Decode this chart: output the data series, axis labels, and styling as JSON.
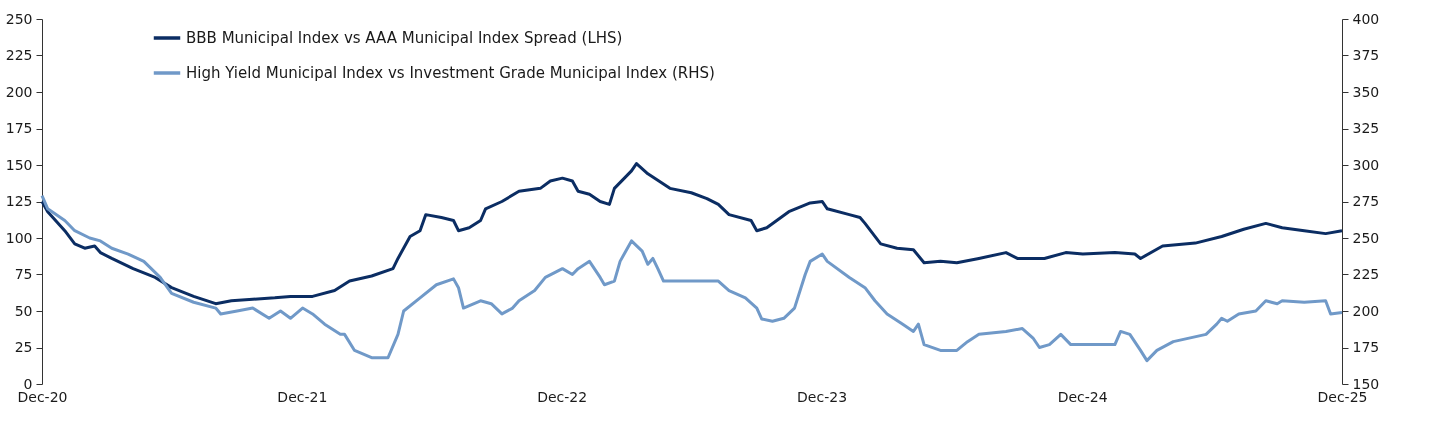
{
  "chart_data": {
    "type": "line",
    "xlim": [
      "2020-12-31",
      "2025-12-31"
    ],
    "xticks": [
      {
        "value": "2020-12-31",
        "label": "Dec-20"
      },
      {
        "value": "2021-12-31",
        "label": "Dec-21"
      },
      {
        "value": "2022-12-31",
        "label": "Dec-22"
      },
      {
        "value": "2023-12-31",
        "label": "Dec-23"
      },
      {
        "value": "2024-12-31",
        "label": "Dec-24"
      },
      {
        "value": "2025-12-31",
        "label": "Dec-25"
      }
    ],
    "ylim": [
      0,
      250
    ],
    "yticks": [
      0,
      25,
      50,
      75,
      100,
      125,
      150,
      175,
      200,
      225,
      250
    ],
    "y2lim": [
      150,
      400
    ],
    "y2ticks": [
      150,
      175,
      200,
      225,
      250,
      275,
      300,
      325,
      350,
      375,
      400
    ],
    "grid": false,
    "legend": "top left",
    "marker": "none",
    "line_style": "solid",
    "series": [
      {
        "name": "BBB Municipal Index vs AAA Municipal Index Spread (LHS)",
        "color": "#0b2d63",
        "axis": "y",
        "x": [
          "2020-12-31",
          "2021-01-08",
          "2021-02-01",
          "2021-02-15",
          "2021-03-01",
          "2021-03-15",
          "2021-03-23",
          "2021-04-08",
          "2021-05-08",
          "2021-06-08",
          "2021-07-01",
          "2021-08-01",
          "2021-09-01",
          "2021-09-23",
          "2021-10-23",
          "2021-11-23",
          "2021-12-15",
          "2022-01-15",
          "2022-02-15",
          "2022-03-08",
          "2022-04-08",
          "2022-05-08",
          "2022-05-15",
          "2022-06-01",
          "2022-06-15",
          "2022-06-23",
          "2022-07-15",
          "2022-08-01",
          "2022-08-08",
          "2022-08-23",
          "2022-09-08",
          "2022-09-15",
          "2022-10-08",
          "2022-11-01",
          "2022-12-01",
          "2022-12-15",
          "2023-01-01",
          "2023-01-15",
          "2023-01-23",
          "2023-02-08",
          "2023-02-23",
          "2023-03-08",
          "2023-03-15",
          "2023-04-08",
          "2023-04-15",
          "2023-05-01",
          "2023-06-01",
          "2023-07-01",
          "2023-07-23",
          "2023-08-08",
          "2023-08-23",
          "2023-09-23",
          "2023-10-01",
          "2023-10-15",
          "2023-11-15",
          "2023-12-15",
          "2024-01-01",
          "2024-01-08",
          "2024-02-08",
          "2024-02-23",
          "2024-03-01",
          "2024-03-23",
          "2024-04-15",
          "2024-05-08",
          "2024-05-23",
          "2024-06-15",
          "2024-07-08",
          "2024-08-08",
          "2024-09-15",
          "2024-10-01",
          "2024-11-08",
          "2024-12-08",
          "2025-01-01",
          "2025-02-15",
          "2025-03-15",
          "2025-03-23",
          "2025-04-23",
          "2025-06-08",
          "2025-07-15",
          "2025-08-15",
          "2025-09-15",
          "2025-10-08",
          "2025-11-08",
          "2025-12-08",
          "2025-12-31"
        ],
        "values": [
          125,
          118,
          105,
          96,
          93,
          94.5,
          90,
          86,
          79,
          73,
          66,
          60,
          55,
          57,
          58,
          59,
          60,
          60,
          64,
          70.5,
          74,
          79,
          86,
          101,
          105,
          116,
          114,
          112,
          105,
          107,
          112,
          120,
          125,
          132,
          134,
          139,
          141,
          139,
          132,
          130,
          125,
          123,
          134,
          146,
          151,
          144,
          134,
          131,
          127,
          123,
          116,
          112,
          105,
          107,
          118,
          124,
          125,
          120,
          116,
          114,
          110,
          96,
          93,
          92,
          83,
          84,
          83,
          86,
          90,
          86,
          86,
          90,
          89,
          90,
          89,
          86,
          94.5,
          96.5,
          101,
          106,
          110,
          107,
          105,
          103,
          105
        ]
      },
      {
        "name": "High Yield Municipal Index vs Investment Grade Municipal Index (RHS)",
        "color": "#7099c8",
        "axis": "y2",
        "x": [
          "2020-12-31",
          "2021-01-08",
          "2021-02-01",
          "2021-02-15",
          "2021-03-08",
          "2021-03-23",
          "2021-04-08",
          "2021-05-01",
          "2021-05-23",
          "2021-06-15",
          "2021-07-01",
          "2021-08-01",
          "2021-09-01",
          "2021-09-08",
          "2021-10-01",
          "2021-10-23",
          "2021-11-15",
          "2021-12-01",
          "2021-12-15",
          "2022-01-01",
          "2022-01-15",
          "2022-02-01",
          "2022-02-23",
          "2022-03-01",
          "2022-03-15",
          "2022-04-08",
          "2022-05-01",
          "2022-05-15",
          "2022-05-23",
          "2022-06-15",
          "2022-07-08",
          "2022-08-01",
          "2022-08-08",
          "2022-08-15",
          "2022-09-08",
          "2022-09-23",
          "2022-10-08",
          "2022-10-23",
          "2022-11-01",
          "2022-11-23",
          "2022-12-08",
          "2023-01-01",
          "2023-01-15",
          "2023-01-23",
          "2023-02-08",
          "2023-02-23",
          "2023-03-01",
          "2023-03-15",
          "2023-03-23",
          "2023-04-08",
          "2023-04-23",
          "2023-05-01",
          "2023-05-08",
          "2023-05-15",
          "2023-05-23",
          "2023-07-01",
          "2023-08-08",
          "2023-08-23",
          "2023-09-15",
          "2023-10-01",
          "2023-10-08",
          "2023-10-23",
          "2023-11-08",
          "2023-11-23",
          "2023-12-08",
          "2023-12-15",
          "2024-01-01",
          "2024-01-08",
          "2024-02-08",
          "2024-03-01",
          "2024-03-15",
          "2024-04-01",
          "2024-04-23",
          "2024-05-08",
          "2024-05-15",
          "2024-05-23",
          "2024-06-15",
          "2024-07-08",
          "2024-07-23",
          "2024-08-08",
          "2024-09-15",
          "2024-10-08",
          "2024-10-23",
          "2024-11-01",
          "2024-11-15",
          "2024-12-01",
          "2024-12-15",
          "2025-01-23",
          "2025-02-15",
          "2025-02-23",
          "2025-03-08",
          "2025-03-23",
          "2025-04-01",
          "2025-04-15",
          "2025-05-08",
          "2025-06-23",
          "2025-07-08",
          "2025-07-15",
          "2025-07-23",
          "2025-08-08",
          "2025-09-01",
          "2025-09-15",
          "2025-10-01",
          "2025-10-08",
          "2025-11-08",
          "2025-12-08",
          "2025-12-15",
          "2025-12-31"
        ],
        "values": [
          279,
          270,
          262,
          255,
          250,
          248,
          243,
          239,
          234,
          223,
          212,
          206,
          202,
          198,
          200,
          202,
          195,
          200,
          195,
          202,
          198,
          191,
          184,
          184,
          173,
          168,
          168,
          184,
          200,
          209,
          218,
          222,
          216,
          202,
          207,
          205,
          198,
          202,
          207,
          214,
          223,
          229,
          225,
          229,
          234,
          223,
          218,
          220.5,
          234,
          248,
          241,
          232,
          236,
          229,
          220.5,
          220.5,
          220.5,
          214,
          209,
          202,
          194.5,
          193,
          195,
          202,
          225,
          234,
          239,
          234,
          223,
          216,
          207,
          198,
          191,
          186,
          191,
          177,
          173,
          173,
          179,
          184,
          186,
          188,
          181.5,
          175,
          177,
          184,
          177,
          177,
          177,
          186,
          184,
          173,
          166,
          173,
          179,
          184,
          191,
          195,
          193,
          198,
          200,
          207,
          205,
          207,
          206,
          207,
          198,
          199
        ]
      }
    ]
  }
}
